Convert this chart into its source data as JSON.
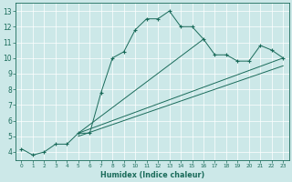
{
  "xlabel": "Humidex (Indice chaleur)",
  "bg_color": "#cce8e8",
  "line_color": "#1a6b5a",
  "xlim": [
    -0.5,
    23.5
  ],
  "ylim": [
    3.5,
    13.5
  ],
  "xticks": [
    0,
    1,
    2,
    3,
    4,
    5,
    6,
    7,
    8,
    9,
    10,
    11,
    12,
    13,
    14,
    15,
    16,
    17,
    18,
    19,
    20,
    21,
    22,
    23
  ],
  "yticks": [
    4,
    5,
    6,
    7,
    8,
    9,
    10,
    11,
    12,
    13
  ],
  "curve_x": [
    0,
    1,
    2,
    3,
    4,
    5,
    6,
    7,
    8,
    9,
    10,
    11,
    12,
    13,
    14,
    15,
    16,
    17,
    18,
    19,
    20,
    21,
    22,
    23
  ],
  "curve_y": [
    4.2,
    3.8,
    4.0,
    4.5,
    4.5,
    5.2,
    5.2,
    7.8,
    10.0,
    10.4,
    11.8,
    12.5,
    12.5,
    13.0,
    12.0,
    12.0,
    11.2,
    10.2,
    10.2,
    9.8,
    9.8,
    10.8,
    10.5,
    10.0
  ],
  "line2_x": [
    5,
    23
  ],
  "line2_y": [
    5.2,
    10.0
  ],
  "line3_x": [
    5,
    23
  ],
  "line3_y": [
    5.0,
    9.5
  ],
  "line4_x": [
    5,
    16
  ],
  "line4_y": [
    5.2,
    11.2
  ]
}
